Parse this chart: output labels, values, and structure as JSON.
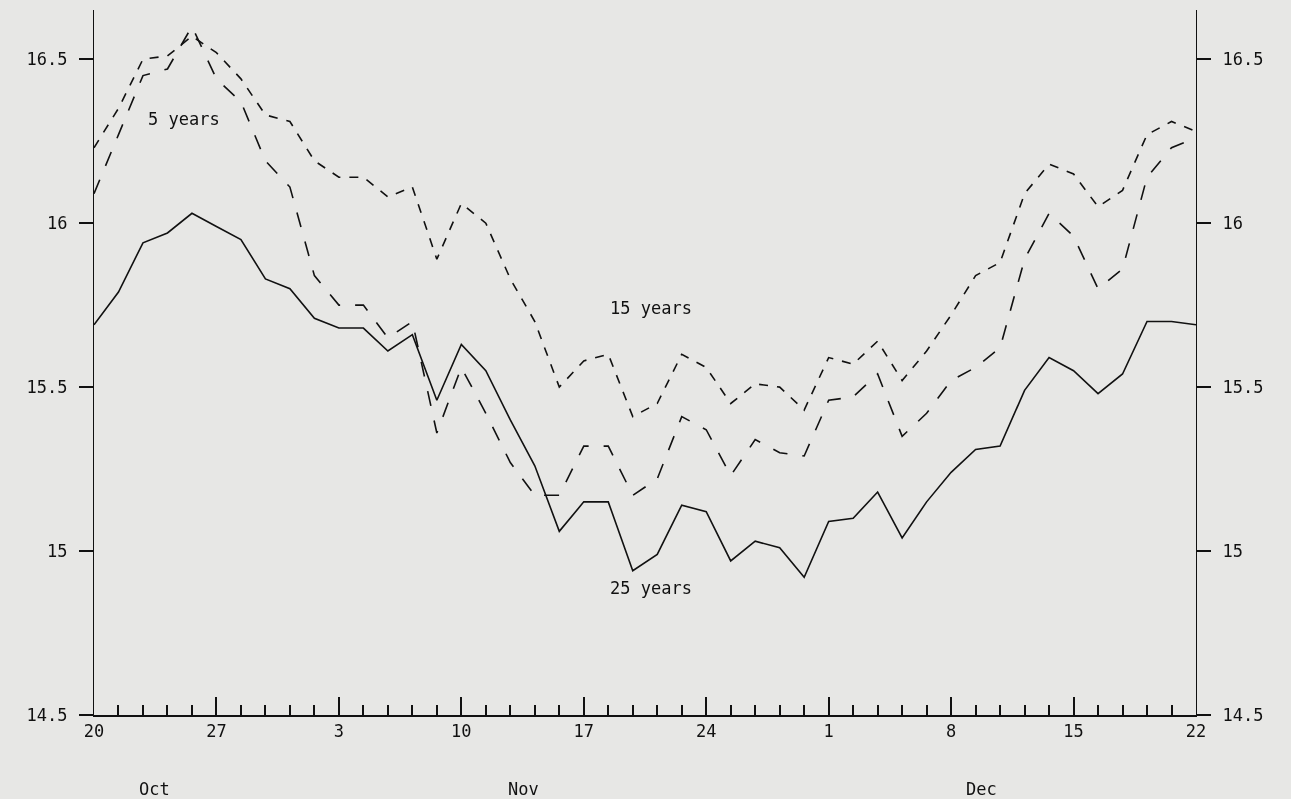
{
  "chart_data": {
    "type": "line",
    "categories": [
      "20",
      null,
      null,
      null,
      null,
      "27",
      null,
      null,
      null,
      null,
      "3",
      null,
      null,
      null,
      null,
      "10",
      null,
      null,
      null,
      null,
      "17",
      null,
      null,
      null,
      null,
      "24",
      null,
      null,
      null,
      null,
      "1",
      null,
      null,
      null,
      null,
      "8",
      null,
      null,
      null,
      null,
      "15",
      null,
      null,
      null,
      null,
      "22"
    ],
    "series": [
      {
        "color": "#111111",
        "line_style": "dashed",
        "values": [
          16.09,
          16.27,
          16.45,
          16.47,
          16.6,
          16.44,
          16.37,
          16.19,
          16.11,
          15.84,
          15.75,
          15.75,
          15.65,
          15.7,
          15.36,
          15.56,
          15.42,
          15.27,
          15.17,
          15.17,
          15.32,
          15.32,
          15.17,
          15.22,
          15.41,
          15.37,
          15.23,
          15.34,
          15.3,
          15.29,
          15.46,
          15.47,
          15.54,
          15.35,
          15.42,
          15.52,
          15.56,
          15.62,
          15.89,
          16.03,
          15.96,
          15.8,
          15.86,
          16.14,
          16.23,
          16.26
        ]
      },
      {
        "color": "#111111",
        "line_style": "dotted",
        "values": [
          16.23,
          16.35,
          16.5,
          16.51,
          16.57,
          16.52,
          16.44,
          16.33,
          16.31,
          16.19,
          16.14,
          16.14,
          16.08,
          16.11,
          15.89,
          16.06,
          16.0,
          15.83,
          15.7,
          15.5,
          15.58,
          15.6,
          15.41,
          15.45,
          15.6,
          15.56,
          15.45,
          15.51,
          15.5,
          15.43,
          15.59,
          15.57,
          15.64,
          15.52,
          15.61,
          15.72,
          15.84,
          15.88,
          16.09,
          16.18,
          16.15,
          16.05,
          16.1,
          16.27,
          16.31,
          16.28
        ]
      },
      {
        "color": "#111111",
        "line_style": "solid",
        "values": [
          15.69,
          15.79,
          15.94,
          15.97,
          16.03,
          15.99,
          15.95,
          15.83,
          15.8,
          15.71,
          15.68,
          15.68,
          15.61,
          15.66,
          15.46,
          15.63,
          15.55,
          15.4,
          15.26,
          15.06,
          15.15,
          15.15,
          14.94,
          14.99,
          15.14,
          15.12,
          14.97,
          15.03,
          15.01,
          14.92,
          15.09,
          15.1,
          15.18,
          15.04,
          15.15,
          15.24,
          15.31,
          15.32,
          15.49,
          15.59,
          15.55,
          15.48,
          15.54,
          15.7,
          15.7,
          15.69
        ]
      }
    ],
    "annotations": [
      "5 years",
      "15 years",
      "25 years",
      "Oct",
      "Nov",
      "Dec"
    ],
    "ylim": [
      14.5,
      16.65
    ],
    "yticks": [
      14.5,
      15,
      15.5,
      16,
      16.5
    ],
    "y2lim": [
      14.5,
      16.65
    ],
    "y2ticks": [
      14.5,
      15,
      15.5,
      16,
      16.5
    ],
    "grid": false,
    "marker": "none"
  }
}
